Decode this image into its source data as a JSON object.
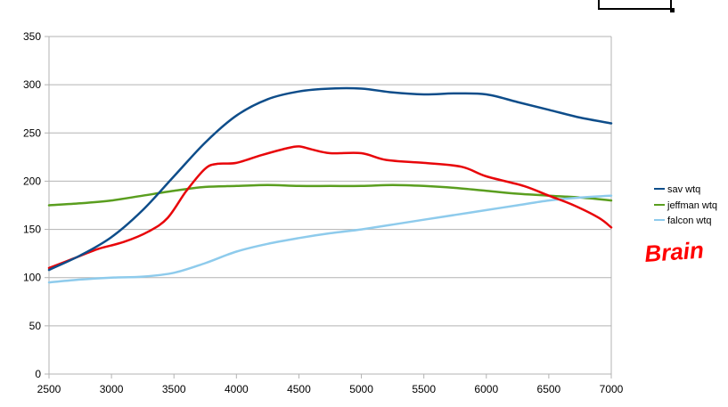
{
  "chart_data": {
    "type": "line",
    "title": "",
    "xlabel": "",
    "ylabel": "",
    "xlim": [
      2500,
      7000
    ],
    "ylim": [
      0,
      350
    ],
    "xticks": [
      2500,
      3000,
      3500,
      4000,
      4500,
      5000,
      5500,
      6000,
      6500,
      7000
    ],
    "yticks": [
      0,
      50,
      100,
      150,
      200,
      250,
      300,
      350
    ],
    "grid": "horizontal",
    "legend_position": "right",
    "annotation": "Brain",
    "series": [
      {
        "name": "sav wtq",
        "color": "#0e4d8a",
        "x": [
          2500,
          2750,
          3000,
          3250,
          3500,
          3750,
          4000,
          4250,
          4500,
          4750,
          5000,
          5250,
          5500,
          5750,
          6000,
          6250,
          6500,
          6750,
          7000
        ],
        "y": [
          108,
          123,
          142,
          170,
          205,
          240,
          268,
          285,
          293,
          296,
          296,
          292,
          290,
          291,
          290,
          282,
          274,
          266,
          260
        ]
      },
      {
        "name": "jeffman wtq",
        "color": "#5a9e1f",
        "x": [
          2500,
          2750,
          3000,
          3250,
          3500,
          3750,
          4000,
          4250,
          4500,
          4750,
          5000,
          5250,
          5500,
          5750,
          6000,
          6250,
          6500,
          6750,
          7000
        ],
        "y": [
          175,
          177,
          180,
          185,
          190,
          194,
          195,
          196,
          195,
          195,
          195,
          196,
          195,
          193,
          190,
          187,
          185,
          183,
          180
        ]
      },
      {
        "name": "falcon wtq",
        "color": "#8ecbec",
        "x": [
          2500,
          2750,
          3000,
          3250,
          3500,
          3750,
          4000,
          4250,
          4500,
          4750,
          5000,
          5250,
          5500,
          5750,
          6000,
          6250,
          6500,
          6750,
          7000
        ],
        "y": [
          95,
          98,
          100,
          101,
          105,
          115,
          127,
          135,
          141,
          146,
          150,
          155,
          160,
          165,
          170,
          175,
          180,
          183,
          185
        ]
      },
      {
        "name": "",
        "color": "#e8060a",
        "x": [
          2500,
          2700,
          2900,
          3100,
          3300,
          3450,
          3600,
          3750,
          3850,
          4000,
          4200,
          4400,
          4500,
          4600,
          4750,
          5000,
          5200,
          5500,
          5800,
          6000,
          6300,
          6500,
          6700,
          6900,
          7000
        ],
        "y": [
          110,
          120,
          130,
          137,
          148,
          162,
          190,
          213,
          218,
          219,
          227,
          234,
          236,
          233,
          229,
          229,
          222,
          219,
          215,
          205,
          195,
          185,
          175,
          162,
          152
        ]
      }
    ]
  },
  "legend": {
    "items": [
      "sav wtq",
      "jeffman wtq",
      "falcon wtq"
    ]
  }
}
